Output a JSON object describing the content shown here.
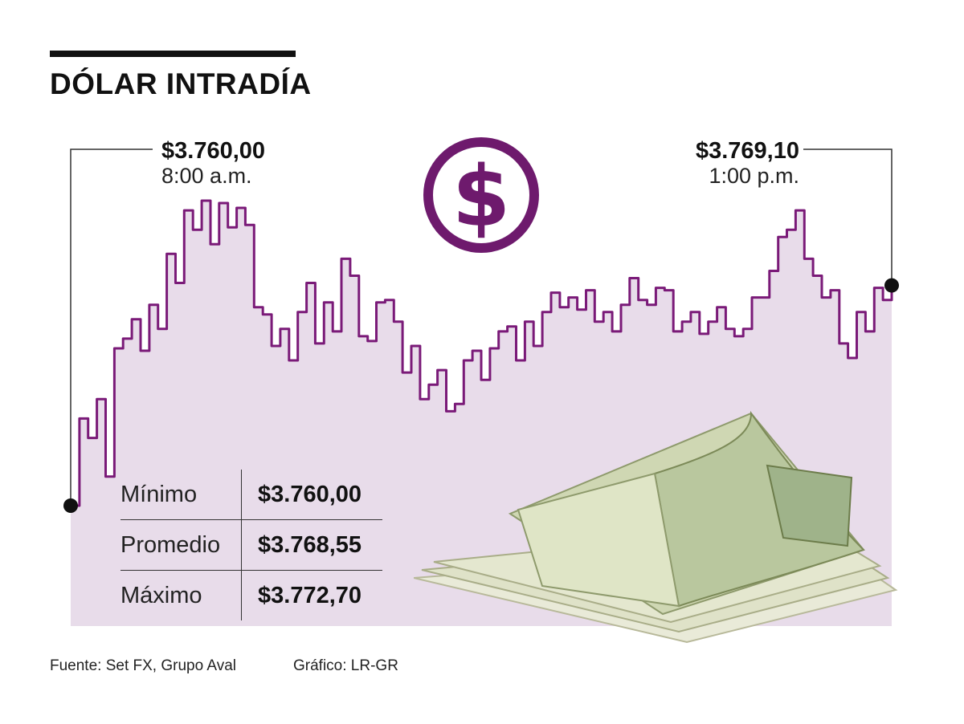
{
  "title": "DÓLAR INTRADÍA",
  "colors": {
    "line": "#7a1a78",
    "fill": "#e8dcea",
    "icon": "#6e1a6d",
    "text": "#111111"
  },
  "icon": "dollar-sign-icon",
  "callouts": {
    "open": {
      "value": "$3.760,00",
      "time": "8:00 a.m."
    },
    "close": {
      "value": "$3.769,10",
      "time": "1:00 p.m."
    }
  },
  "stats": [
    {
      "label": "Mínimo",
      "value": "$3.760,00"
    },
    {
      "label": "Promedio",
      "value": "$3.768,55"
    },
    {
      "label": "Máximo",
      "value": "$3.772,70"
    }
  ],
  "footer": {
    "source": "Fuente: Set FX, Grupo Aval",
    "credit": "Gráfico: LR-GR"
  },
  "chart_data": {
    "type": "area",
    "title": "DÓLAR INTRADÍA",
    "xlabel": "",
    "ylabel": "",
    "x_range": [
      "8:00 a.m.",
      "1:00 p.m."
    ],
    "ylim": [
      3759.0,
      3773.5
    ],
    "grid": false,
    "values": [
      3760.0,
      3763.6,
      3762.8,
      3764.4,
      3761.2,
      3766.5,
      3766.9,
      3767.7,
      3766.4,
      3768.3,
      3767.3,
      3770.4,
      3769.2,
      3772.2,
      3771.4,
      3772.6,
      3770.8,
      3772.5,
      3771.5,
      3772.3,
      3771.6,
      3768.2,
      3767.9,
      3766.6,
      3767.3,
      3766.0,
      3768.0,
      3769.2,
      3766.7,
      3768.4,
      3767.2,
      3770.2,
      3769.5,
      3767.0,
      3766.8,
      3768.4,
      3768.5,
      3767.6,
      3765.5,
      3766.6,
      3764.4,
      3765.0,
      3765.6,
      3763.9,
      3764.2,
      3766.0,
      3766.4,
      3765.2,
      3766.5,
      3767.2,
      3767.4,
      3766.0,
      3767.6,
      3766.6,
      3768.0,
      3768.8,
      3768.2,
      3768.6,
      3768.1,
      3768.9,
      3767.6,
      3768.0,
      3767.2,
      3768.3,
      3769.4,
      3768.5,
      3768.3,
      3769.0,
      3768.9,
      3767.2,
      3767.6,
      3768.0,
      3767.1,
      3767.6,
      3768.2,
      3767.3,
      3767.0,
      3767.3,
      3768.6,
      3768.6,
      3769.7,
      3771.1,
      3771.4,
      3772.2,
      3770.2,
      3769.5,
      3768.6,
      3768.9,
      3766.7,
      3766.1,
      3768.0,
      3767.2,
      3769.0,
      3768.5,
      3769.1
    ]
  }
}
